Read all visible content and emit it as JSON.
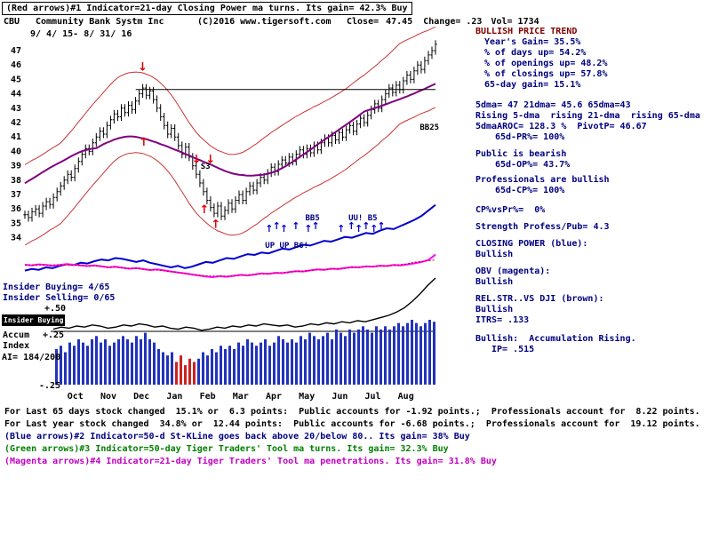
{
  "header": {
    "indicator1": "(Red arrows)#1 Indicator=21-day Closing Power ma turns. Its gain= 42.3% Buy",
    "ticker": "CBU",
    "company": "Community Bank Systm Inc",
    "copyright": "(C)2016 www.tigersoft.com",
    "close_label": "Close=",
    "close_value": "47.45",
    "change_label": "Change=",
    "change_value": ".23",
    "vol_label": "Vol=",
    "vol_value": "1734",
    "date_range": "9/ 4/ 15- 8/ 31/ 16"
  },
  "left_labels": {
    "insider_buying": "Insider Buying= 4/65",
    "insider_selling": "Insider Selling= 0/65",
    "scale_plus50": "+.50",
    "insider_flag": "Insider Buying",
    "accum_line1": "Accum",
    "scale_plus25": "+.25",
    "accum_line2": "Index",
    "ai_value": "AI= 184/200",
    "scale_minus25": "-.25"
  },
  "right_panel": {
    "lines": [
      {
        "t": "BULLISH PRICE TREND",
        "cls": "maroonb"
      },
      {
        "t": "Year's Gain= 35.5%",
        "ind": 10
      },
      {
        "t": "% of days up= 54.2%",
        "ind": 10
      },
      {
        "t": "% of openings up= 48.2%",
        "ind": 10
      },
      {
        "t": "% of closings up= 57.8%",
        "ind": 10
      },
      {
        "t": "65-day gain= 15.1%",
        "ind": 10
      },
      {
        "t": "5dma= 47 21dma= 45.6 65dma=43",
        "gap": 11
      },
      {
        "t": "Rising 5-dma  rising 21-dma  rising 65-dma"
      },
      {
        "t": "5dmaAROC= 128.3 %  PivotP= 46.67"
      },
      {
        "t": "65d-PR%= 100%",
        "ind": 22
      },
      {
        "t": "Public is bearish",
        "gap": 7
      },
      {
        "t": "65d-OP%= 43.7%",
        "ind": 22
      },
      {
        "t": "Professionals are bullish",
        "gap": 5
      },
      {
        "t": "65d-CP%= 100%",
        "ind": 22
      },
      {
        "t": "CP%vsPr%=  0%",
        "gap": 10
      },
      {
        "t": "Strength Profess/Pub= 4.3",
        "gap": 7
      },
      {
        "t": "CLOSING POWER (blue):",
        "cls": "navyb",
        "gap": 7
      },
      {
        "t": "Bullish"
      },
      {
        "t": "OBV (magenta):",
        "cls": "navyb",
        "gap": 7
      },
      {
        "t": "Bullish"
      },
      {
        "t": "REL.STR..VS DJI (brown):",
        "cls": "navyb",
        "gap": 7
      },
      {
        "t": "Bullish"
      },
      {
        "t": "ITRS= .133"
      },
      {
        "t": "Bullish:  Accumulation Rising.",
        "cls": "navyb",
        "gap": 9
      },
      {
        "t": "IP= .515",
        "ind": 18
      }
    ]
  },
  "footer": {
    "lines": [
      {
        "t": "For Last 65 days stock changed  15.1% or  6.3 points:  Public accounts for -1.92 points.;  Professionals account for  8.22 points.",
        "cls": ""
      },
      {
        "t": "For Last year stock changed  34.8% or  12.44 points:  Public accounts for -6.68 points.;  Professionals account for  19.12 points.",
        "cls": ""
      },
      {
        "t": "(Blue arrows)#2 Indicator=50-d St-KLine goes back above 20/below 80.. Its gain= 38% Buy",
        "cls": "navy"
      },
      {
        "t": "(Green arrows)#3 Indicator=50-day Tiger Traders' Tool ma turns. Its gain= 32.3% Buy",
        "cls": "green"
      },
      {
        "t": "(Magenta arrows)#4 Indicator=21-day Tiger Traders' Tool ma penetrations. Its gain= 31.8% Buy",
        "cls": "mag"
      }
    ]
  },
  "colors": {
    "navy": "#000080",
    "maroon": "#800000",
    "green": "#008000",
    "magenta": "#C000C0",
    "closing_power": "#0000CC",
    "obv": "#FF00FF",
    "long_ma": "#800080",
    "band": "#CC3333",
    "histogram": "#2233BB",
    "signal_red": "#DD0000"
  },
  "chart_data": {
    "type": "candlestick",
    "title": "CBU Community Bank Systm Inc 9/ 4/ 15- 8/ 31/ 16",
    "last_close": 47.45,
    "price_axis": {
      "min": 34,
      "max": 47,
      "ticks": [
        47,
        46,
        45,
        44,
        43,
        42,
        41,
        40,
        39,
        38,
        37,
        36,
        35,
        34
      ]
    },
    "months": [
      "Oct",
      "Nov",
      "Dec",
      "Jan",
      "Feb",
      "Mar",
      "Apr",
      "May",
      "Jun",
      "Jul",
      "Aug"
    ],
    "closes": [
      35.6,
      35.4,
      35.8,
      36.0,
      35.7,
      36.2,
      36.5,
      36.3,
      36.8,
      37.2,
      37.6,
      38.0,
      38.4,
      38.2,
      38.8,
      39.3,
      39.8,
      40.2,
      40.0,
      40.6,
      41.0,
      41.4,
      41.2,
      41.8,
      42.2,
      42.6,
      42.4,
      43.0,
      42.7,
      43.2,
      42.9,
      43.5,
      44.0,
      44.4,
      43.9,
      44.2,
      43.6,
      43.0,
      42.4,
      41.8,
      41.2,
      41.6,
      41.0,
      40.4,
      39.8,
      40.3,
      39.6,
      39.0,
      38.4,
      37.8,
      37.2,
      36.6,
      36.1,
      35.7,
      36.2,
      35.5,
      35.9,
      36.4,
      36.0,
      36.6,
      37.0,
      36.6,
      37.2,
      37.6,
      37.3,
      37.8,
      38.2,
      38.0,
      38.5,
      38.9,
      38.6,
      39.1,
      39.4,
      39.2,
      39.6,
      39.3,
      39.8,
      40.1,
      39.8,
      40.2,
      39.9,
      40.4,
      40.1,
      40.6,
      40.9,
      40.6,
      41.1,
      40.8,
      41.3,
      41.0,
      41.5,
      41.8,
      41.4,
      41.9,
      42.3,
      42.0,
      42.5,
      42.9,
      43.3,
      43.0,
      43.6,
      44.0,
      44.4,
      44.1,
      44.6,
      44.3,
      44.9,
      45.3,
      45.0,
      45.6,
      46.0,
      45.7,
      46.3,
      46.7,
      47.0,
      47.45
    ],
    "ma_short_window": 21,
    "ma_long_window": 41,
    "band_offset": 2.8,
    "resistance": {
      "price": 44.3,
      "from": 0.27,
      "to": 1.0
    },
    "closing_power": [
      0.13,
      0.15,
      0.14,
      0.17,
      0.16,
      0.19,
      0.21,
      0.2,
      0.23,
      0.22,
      0.25,
      0.27,
      0.26,
      0.29,
      0.28,
      0.26,
      0.24,
      0.26,
      0.23,
      0.21,
      0.19,
      0.17,
      0.19,
      0.16,
      0.18,
      0.21,
      0.24,
      0.23,
      0.26,
      0.29,
      0.28,
      0.31,
      0.34,
      0.33,
      0.36,
      0.35,
      0.38,
      0.41,
      0.4,
      0.43,
      0.46,
      0.45,
      0.48,
      0.51,
      0.5,
      0.53,
      0.56,
      0.55,
      0.58,
      0.61,
      0.6,
      0.64,
      0.67,
      0.66,
      0.7,
      0.74,
      0.78,
      0.83,
      0.9,
      0.97
    ],
    "obv": [
      0.58,
      0.56,
      0.59,
      0.57,
      0.55,
      0.57,
      0.6,
      0.58,
      0.56,
      0.54,
      0.56,
      0.53,
      0.5,
      0.52,
      0.49,
      0.46,
      0.48,
      0.45,
      0.42,
      0.44,
      0.41,
      0.38,
      0.35,
      0.32,
      0.29,
      0.26,
      0.23,
      0.21,
      0.24,
      0.22,
      0.25,
      0.28,
      0.26,
      0.29,
      0.32,
      0.31,
      0.34,
      0.33,
      0.36,
      0.39,
      0.38,
      0.41,
      0.44,
      0.43,
      0.46,
      0.45,
      0.48,
      0.51,
      0.5,
      0.53,
      0.52,
      0.55,
      0.54,
      0.57,
      0.56,
      0.59,
      0.62,
      0.66,
      0.72,
      0.88
    ],
    "accum_index": [
      0.52,
      0.54,
      0.53,
      0.55,
      0.54,
      0.56,
      0.55,
      0.53,
      0.54,
      0.56,
      0.55,
      0.57,
      0.56,
      0.54,
      0.55,
      0.53,
      0.52,
      0.54,
      0.53,
      0.51,
      0.52,
      0.54,
      0.53,
      0.55,
      0.54,
      0.56,
      0.55,
      0.57,
      0.56,
      0.55,
      0.56,
      0.54,
      0.55,
      0.57,
      0.56,
      0.58,
      0.57,
      0.59,
      0.58,
      0.6,
      0.59,
      0.61,
      0.63,
      0.65,
      0.68,
      0.72,
      0.78,
      0.85,
      0.93,
      1.0
    ],
    "histogram": [
      0.55,
      0.6,
      0.5,
      0.65,
      0.6,
      0.7,
      0.65,
      0.6,
      0.7,
      0.75,
      0.65,
      0.7,
      0.6,
      0.65,
      0.7,
      0.75,
      0.7,
      0.65,
      0.75,
      0.7,
      0.8,
      0.7,
      0.65,
      0.55,
      0.5,
      0.45,
      0.5,
      0.35,
      0.45,
      0.3,
      0.4,
      0.35,
      0.4,
      0.5,
      0.45,
      0.55,
      0.5,
      0.6,
      0.55,
      0.6,
      0.55,
      0.65,
      0.6,
      0.7,
      0.65,
      0.6,
      0.65,
      0.7,
      0.6,
      0.65,
      0.75,
      0.7,
      0.65,
      0.7,
      0.65,
      0.75,
      0.7,
      0.8,
      0.75,
      0.7,
      0.75,
      0.8,
      0.7,
      0.85,
      0.8,
      0.75,
      0.85,
      0.8,
      0.85,
      0.9,
      0.85,
      0.8,
      0.9,
      0.85,
      0.9,
      0.85,
      0.9,
      0.95,
      0.9,
      0.95,
      1.0,
      0.95,
      0.9,
      0.95,
      1.0,
      0.97
    ],
    "histogram_red": [
      27,
      28,
      29,
      30,
      31
    ],
    "arrows": {
      "red_up": [
        {
          "x": 0.29,
          "p": 40.4
        },
        {
          "x": 0.437,
          "p": 35.7
        },
        {
          "x": 0.465,
          "p": 34.7
        }
      ],
      "red_down": [
        {
          "x": 0.287,
          "p": 45.6
        },
        {
          "x": 0.418,
          "p": 39.2
        },
        {
          "x": 0.452,
          "p": 39.2
        }
      ],
      "blue_up": [
        {
          "x": 0.595,
          "p": 34.4
        },
        {
          "x": 0.613,
          "p": 34.6
        },
        {
          "x": 0.631,
          "p": 34.4
        },
        {
          "x": 0.66,
          "p": 34.6
        },
        {
          "x": 0.69,
          "p": 34.4
        },
        {
          "x": 0.708,
          "p": 34.6
        },
        {
          "x": 0.77,
          "p": 34.4
        },
        {
          "x": 0.795,
          "p": 34.6
        },
        {
          "x": 0.813,
          "p": 34.4
        },
        {
          "x": 0.831,
          "p": 34.6
        },
        {
          "x": 0.85,
          "p": 34.4
        },
        {
          "x": 0.868,
          "p": 34.6
        }
      ]
    },
    "annotations": [
      {
        "text": "S3",
        "x": 0.428,
        "p": 38.8,
        "color": "#000000"
      },
      {
        "text": "BB5",
        "x": 0.683,
        "p": 35.2,
        "color": "#000080"
      },
      {
        "text": "UU! B5",
        "x": 0.788,
        "p": 35.2,
        "color": "#000080"
      },
      {
        "text": "UP UP B6!",
        "x": 0.585,
        "p": 33.3,
        "color": "#000080"
      },
      {
        "text": "BB25",
        "x": 0.962,
        "p": 41.5,
        "color": "#000000"
      }
    ]
  }
}
